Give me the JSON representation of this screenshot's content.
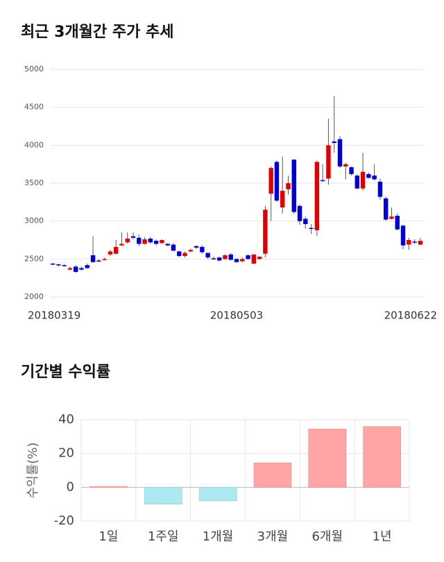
{
  "chart_data": [
    {
      "type": "candlestick",
      "title": "최근 3개월간 주가 추세",
      "categories": [
        "20180319",
        null,
        null,
        null,
        null,
        null,
        null,
        null,
        null,
        null,
        null,
        null,
        null,
        null,
        null,
        null,
        null,
        null,
        null,
        null,
        null,
        null,
        null,
        null,
        null,
        null,
        null,
        null,
        null,
        null,
        null,
        null,
        "20180503",
        null,
        null,
        null,
        null,
        null,
        null,
        null,
        null,
        null,
        null,
        null,
        null,
        null,
        null,
        null,
        null,
        null,
        null,
        null,
        null,
        null,
        null,
        null,
        null,
        null,
        null,
        null,
        null,
        null,
        null,
        null,
        "20180622"
      ],
      "open": [
        2440,
        2430,
        2420,
        2360,
        2400,
        2380,
        2420,
        2550,
        2480,
        2490,
        2560,
        2570,
        2680,
        2720,
        2800,
        2780,
        2700,
        2770,
        2740,
        2710,
        2700,
        2690,
        2600,
        2540,
        2600,
        2670,
        2660,
        2580,
        2510,
        2520,
        2500,
        2560,
        2500,
        2470,
        2550,
        2440,
        2500,
        2570,
        3360,
        3780,
        3180,
        3420,
        3810,
        3200,
        3030,
        2910,
        2880,
        3540,
        3560,
        4050,
        4080,
        3720,
        3710,
        3600,
        3430,
        3620,
        3600,
        3520,
        3300,
        3030,
        3070,
        2940,
        2690,
        2730,
        2690
      ],
      "high": [
        2450,
        2440,
        2430,
        2400,
        2420,
        2400,
        2440,
        2800,
        2500,
        2520,
        2620,
        2750,
        2850,
        2850,
        2850,
        2820,
        2790,
        2790,
        2760,
        2760,
        2710,
        2710,
        2610,
        2600,
        2640,
        2680,
        2680,
        2590,
        2530,
        2530,
        2560,
        2580,
        2510,
        2520,
        2560,
        2560,
        2540,
        3200,
        3720,
        3800,
        3850,
        3600,
        3820,
        3220,
        3060,
        2960,
        3800,
        3750,
        4350,
        4650,
        4120,
        3770,
        3720,
        3620,
        3900,
        3640,
        3750,
        3560,
        3320,
        3180,
        3100,
        2950,
        2780,
        2760,
        2780
      ],
      "low": [
        2420,
        2400,
        2400,
        2350,
        2320,
        2350,
        2370,
        2450,
        2460,
        2480,
        2540,
        2560,
        2670,
        2700,
        2760,
        2670,
        2690,
        2700,
        2680,
        2700,
        2670,
        2600,
        2520,
        2520,
        2590,
        2630,
        2570,
        2500,
        2490,
        2470,
        2490,
        2480,
        2450,
        2460,
        2490,
        2430,
        2490,
        2520,
        3000,
        3250,
        3100,
        3350,
        3100,
        2950,
        2900,
        2830,
        2800,
        3520,
        3480,
        3900,
        3700,
        3550,
        3600,
        3420,
        3400,
        3560,
        3540,
        3280,
        3000,
        3020,
        2880,
        2630,
        2620,
        2700,
        2680
      ],
      "close": [
        2430,
        2425,
        2415,
        2380,
        2330,
        2360,
        2380,
        2460,
        2475,
        2500,
        2600,
        2660,
        2700,
        2770,
        2780,
        2700,
        2760,
        2720,
        2700,
        2750,
        2680,
        2610,
        2540,
        2580,
        2620,
        2650,
        2590,
        2520,
        2500,
        2480,
        2550,
        2490,
        2460,
        2500,
        2500,
        2560,
        2530,
        3150,
        3700,
        3270,
        3400,
        3500,
        3120,
        3000,
        2960,
        2900,
        3780,
        3530,
        4000,
        4030,
        3720,
        3750,
        3620,
        3430,
        3650,
        3570,
        3550,
        3320,
        3020,
        3060,
        2890,
        2680,
        2750,
        2720,
        2740
      ],
      "up_color": "#e00000",
      "down_color": "#0000d6",
      "ylim": [
        2000,
        5000
      ],
      "yticks": [
        2000,
        2500,
        3000,
        3500,
        4000,
        4500,
        5000
      ],
      "grid": true
    },
    {
      "type": "bar",
      "title": "기간별 수익률",
      "ylabel": "수익률(%)",
      "categories": [
        "1일",
        "1주일",
        "1개월",
        "3개월",
        "6개월",
        "1년"
      ],
      "values": [
        0.5,
        -10,
        -8,
        14.5,
        34.5,
        36
      ],
      "positive_color": "#ffa5a5",
      "negative_color": "#aee8f0",
      "ylim": [
        -20,
        40
      ],
      "yticks": [
        -20,
        0,
        20,
        40
      ],
      "grid": true
    }
  ]
}
